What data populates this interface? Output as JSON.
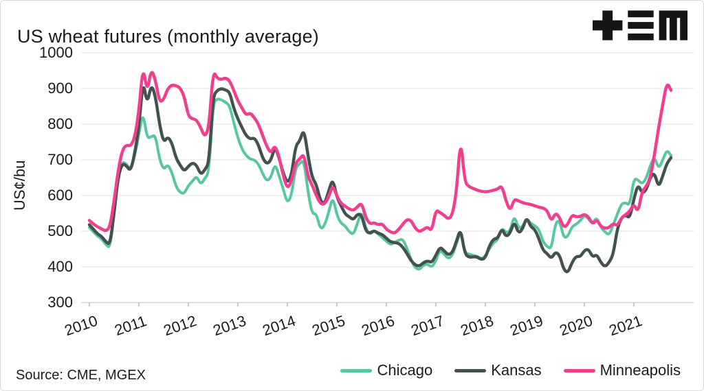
{
  "title": "US wheat futures (monthly average)",
  "source": "Source: CME, MGEX",
  "logo": {
    "name": "tem-logo",
    "color": "#161616"
  },
  "colors": {
    "chicago": "#58c79e",
    "kansas": "#435251",
    "minneapolis": "#f23e8e",
    "grid": "#e2e2e2",
    "axis": "#bdbdbd",
    "text": "#1b1b1b"
  },
  "chart_data": {
    "type": "line",
    "title": "US wheat futures (monthly average)",
    "xlabel": "",
    "ylabel": "US¢/bu",
    "frequency": "monthly",
    "x_start": "2010-01",
    "x_end": "2021-10",
    "x_tick_labels": [
      "2010",
      "2011",
      "2012",
      "2013",
      "2014",
      "2015",
      "2016",
      "2017",
      "2018",
      "2019",
      "2020",
      "2021"
    ],
    "y_tick_labels": [
      "1000",
      "900",
      "800",
      "700",
      "600",
      "500",
      "400",
      "300"
    ],
    "y_ticks": [
      1000,
      900,
      800,
      700,
      600,
      500,
      400,
      300
    ],
    "ylim": [
      300,
      1000
    ],
    "grid": "horizontal",
    "legend_position": "bottom-right",
    "series": [
      {
        "name": "Chicago",
        "color": "#58c79e",
        "values": [
          510,
          498,
          486,
          478,
          462,
          452,
          548,
          660,
          695,
          688,
          672,
          712,
          772,
          835,
          760,
          765,
          770,
          702,
          672,
          688,
          665,
          625,
          608,
          605,
          628,
          640,
          655,
          630,
          648,
          665,
          858,
          872,
          868,
          862,
          852,
          805,
          762,
          730,
          712,
          702,
          700,
          688,
          662,
          640,
          650,
          690,
          655,
          618,
          578,
          600,
          678,
          690,
          700,
          610,
          548,
          550,
          505,
          515,
          552,
          598,
          545,
          522,
          515,
          498,
          490,
          522,
          558,
          508,
          490,
          502,
          492,
          482,
          472,
          462,
          468,
          475,
          478,
          452,
          420,
          396,
          392,
          405,
          408,
          398,
          417,
          448,
          436,
          422,
          432,
          465,
          502,
          440,
          436,
          432,
          430,
          422,
          430,
          452,
          468,
          475,
          510,
          496,
          500,
          545,
          508,
          512,
          535,
          522,
          515,
          505,
          470,
          456,
          450,
          525,
          530,
          481,
          485,
          513,
          519,
          529,
          545,
          535,
          520,
          540,
          510,
          498,
          488,
          518,
          548,
          577,
          580,
          572,
          648,
          644,
          632,
          648,
          685,
          710,
          674,
          700,
          728,
          712
        ]
      },
      {
        "name": "Kansas",
        "color": "#435251",
        "values": [
          518,
          505,
          492,
          485,
          470,
          462,
          552,
          655,
          690,
          683,
          668,
          718,
          790,
          925,
          855,
          912,
          880,
          800,
          748,
          765,
          748,
          705,
          685,
          668,
          682,
          692,
          685,
          658,
          672,
          692,
          878,
          895,
          900,
          896,
          890,
          845,
          815,
          790,
          768,
          758,
          762,
          742,
          705,
          688,
          698,
          738,
          705,
          662,
          635,
          655,
          740,
          752,
          788,
          712,
          650,
          632,
          585,
          575,
          612,
          648,
          595,
          572,
          548,
          540,
          532,
          548,
          546,
          500,
          494,
          502,
          494,
          491,
          480,
          470,
          468,
          466,
          455,
          437,
          417,
          405,
          402,
          412,
          417,
          412,
          432,
          456,
          445,
          433,
          440,
          472,
          508,
          437,
          427,
          428,
          428,
          420,
          425,
          460,
          478,
          480,
          508,
          484,
          494,
          528,
          494,
          505,
          540,
          512,
          505,
          478,
          446,
          437,
          423,
          442,
          433,
          392,
          383,
          412,
          430,
          428,
          446,
          450,
          427,
          435,
          412,
          400,
          412,
          435,
          508,
          538,
          546,
          536,
          590,
          632,
          606,
          615,
          652,
          664,
          622,
          655,
          690,
          706
        ]
      },
      {
        "name": "Minneapolis",
        "color": "#f23e8e",
        "values": [
          530,
          520,
          512,
          506,
          500,
          512,
          585,
          672,
          728,
          742,
          738,
          762,
          835,
          965,
          888,
          955,
          925,
          862,
          868,
          900,
          910,
          908,
          902,
          878,
          822,
          815,
          812,
          790,
          763,
          792,
          950,
          928,
          925,
          930,
          922,
          895,
          865,
          845,
          825,
          832,
          818,
          800,
          768,
          738,
          718,
          742,
          708,
          655,
          618,
          640,
          692,
          702,
          718,
          652,
          630,
          600,
          577,
          575,
          595,
          630,
          598,
          578,
          570,
          562,
          558,
          568,
          580,
          538,
          520,
          524,
          518,
          521,
          505,
          498,
          494,
          505,
          520,
          533,
          530,
          508,
          498,
          505,
          512,
          500,
          560,
          552,
          545,
          533,
          545,
          610,
          765,
          638,
          625,
          620,
          615,
          612,
          610,
          612,
          615,
          618,
          628,
          585,
          556,
          590,
          585,
          580,
          577,
          575,
          571,
          567,
          565,
          558,
          527,
          552,
          538,
          510,
          519,
          546,
          540,
          541,
          548,
          540,
          519,
          533,
          513,
          508,
          510,
          522,
          515,
          538,
          546,
          556,
          577,
          552,
          612,
          625,
          650,
          715,
          790,
          855,
          918,
          895
        ]
      }
    ]
  },
  "legend": {
    "items": [
      {
        "label": "Chicago",
        "color": "#58c79e"
      },
      {
        "label": "Kansas",
        "color": "#435251"
      },
      {
        "label": "Minneapolis",
        "color": "#f23e8e"
      }
    ]
  }
}
